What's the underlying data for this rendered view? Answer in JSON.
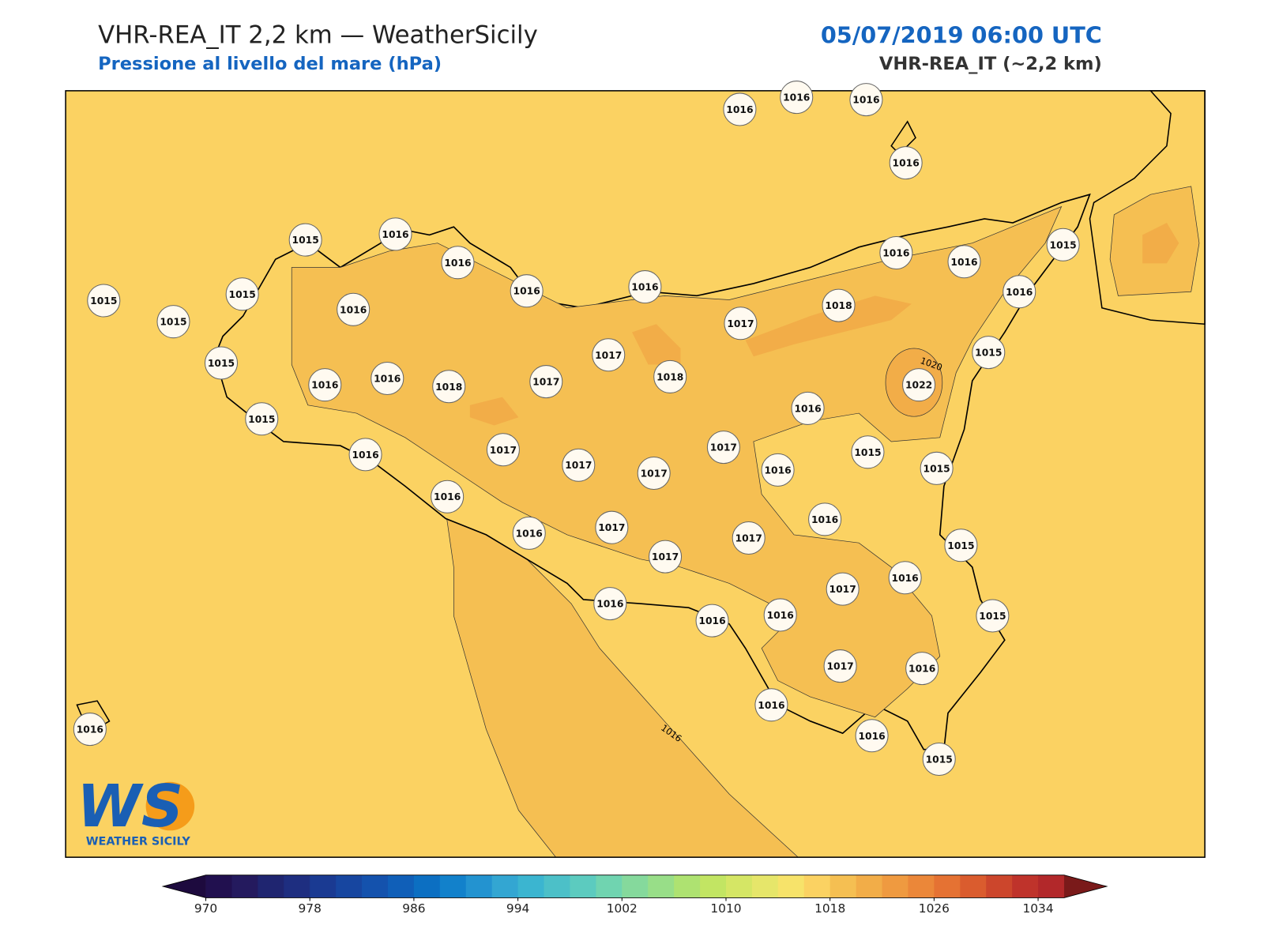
{
  "header": {
    "title": "VHR-REA_IT 2,2 km — WeatherSicily",
    "subtitle": "Pressione al livello del mare (hPa)",
    "datetime": "05/07/2019 06:00 UTC",
    "model": "VHR-REA_IT (~2,2 km)"
  },
  "stations": [
    "1016",
    "1016",
    "1016",
    "1016",
    "1015",
    "1016",
    "1016",
    "1016",
    "1016",
    "1015",
    "1015",
    "1015",
    "1016",
    "1016",
    "1016",
    "1015",
    "1016",
    "1018",
    "1017",
    "1017",
    "1018",
    "1015",
    "1016",
    "1016",
    "1018",
    "1017",
    "1015",
    "1022",
    "1015",
    "1016",
    "1017",
    "1016",
    "1017",
    "1017",
    "1017",
    "1016",
    "1015",
    "1015",
    "1016",
    "1016",
    "1016",
    "1017",
    "1017",
    "1017",
    "1015",
    "1017",
    "1016",
    "1016",
    "1016",
    "1016",
    "1015",
    "1017",
    "1016",
    "1016",
    "1016",
    "1015",
    "1016"
  ],
  "contour_labels": [
    "1020",
    "1016"
  ],
  "logo": {
    "mark": "WS",
    "text": "WEATHER SICILY"
  },
  "colorbar": {
    "ticks": [
      970,
      978,
      986,
      994,
      1002,
      1010,
      1018,
      1026,
      1034
    ],
    "colors": [
      "#21104f",
      "#241a5e",
      "#1f2570",
      "#1e2e80",
      "#1a3a92",
      "#1746a0",
      "#1452ad",
      "#105fb8",
      "#0c6fc2",
      "#1281cb",
      "#2393d0",
      "#33a6d2",
      "#3bb5d0",
      "#4cc0c8",
      "#5ccbbf",
      "#70d4b0",
      "#85d99c",
      "#98de88",
      "#aee271",
      "#c2e563",
      "#d5e665",
      "#e6e66a",
      "#f7e36a",
      "#fbd262",
      "#f5bf52",
      "#f2ad48",
      "#ef9a40",
      "#eb8739",
      "#e57233",
      "#da5c2e",
      "#cc462c",
      "#bf332b",
      "#b2282a"
    ],
    "under_color": "#1d0a3e",
    "over_color": "#7a1a1a"
  }
}
